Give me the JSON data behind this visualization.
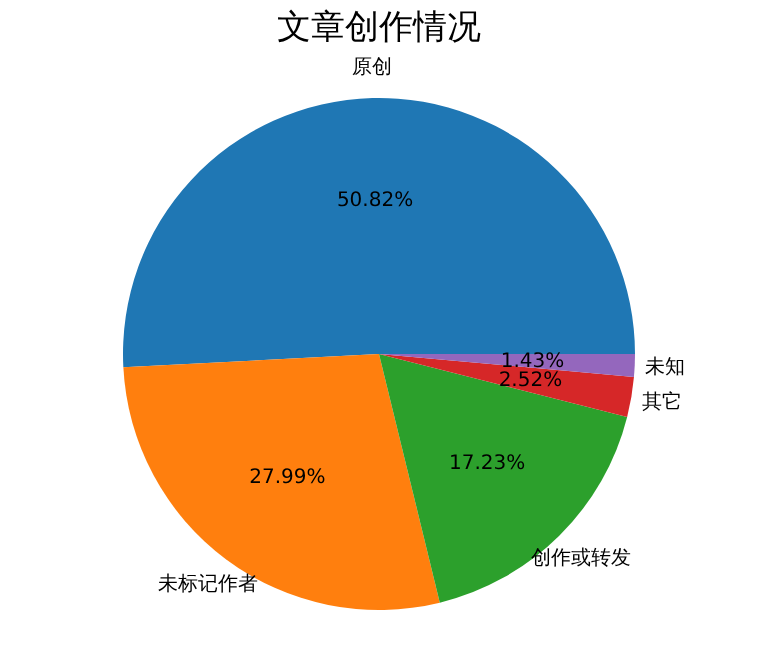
{
  "chart_data": {
    "type": "pie",
    "title": "文章创作情况",
    "categories": [
      "原创",
      "未标记作者",
      "创作或转发",
      "其它",
      "未知"
    ],
    "values": [
      50.82,
      27.99,
      17.23,
      2.52,
      1.43
    ],
    "value_labels": [
      "50.82%",
      "27.99%",
      "17.23%",
      "2.52%",
      "1.43%"
    ],
    "colors": [
      "#1f77b4",
      "#ff7f0e",
      "#2ca02c",
      "#d62728",
      "#9467bd"
    ],
    "legend": false
  }
}
